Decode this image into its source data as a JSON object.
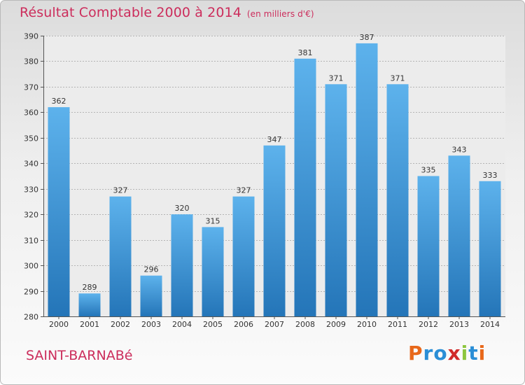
{
  "chart_data": {
    "type": "bar",
    "title": "Résultat Comptable 2000 à 2014",
    "subtitle": "(en milliers d'€)",
    "xlabel": "",
    "ylabel": "",
    "categories": [
      "2000",
      "2001",
      "2002",
      "2003",
      "2004",
      "2005",
      "2006",
      "2007",
      "2008",
      "2009",
      "2010",
      "2011",
      "2012",
      "2013",
      "2014"
    ],
    "values": [
      362,
      289,
      327,
      296,
      320,
      315,
      327,
      347,
      381,
      371,
      387,
      371,
      335,
      343,
      333
    ],
    "ylim": [
      280,
      390
    ],
    "yticks": [
      280,
      290,
      300,
      310,
      320,
      330,
      340,
      350,
      360,
      370,
      380,
      390
    ],
    "grid": true,
    "bar_color": "#3d8fd6"
  },
  "footer": {
    "commune": "SAINT-BARNABé",
    "brand": "Proxiti",
    "brand_colors": [
      "#e8681a",
      "#2a8ed6",
      "#2a8ed6",
      "#d12b2b",
      "#8dc63f",
      "#2a8ed6",
      "#e8681a"
    ]
  }
}
